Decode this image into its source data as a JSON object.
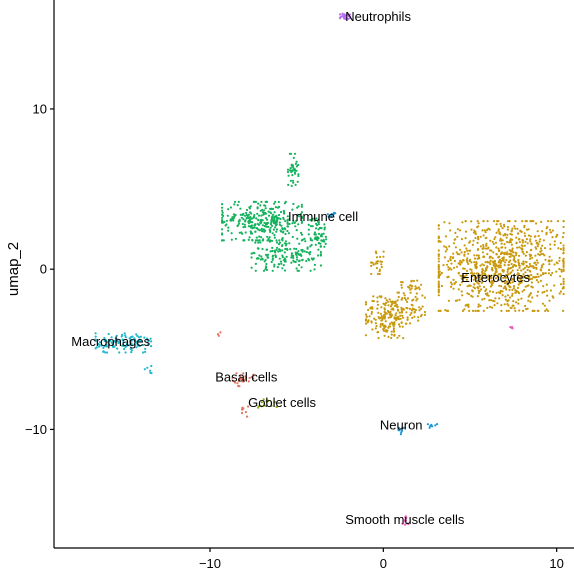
{
  "chart_data": {
    "type": "scatter",
    "xlabel": "",
    "ylabel": "umap_2",
    "xlim": [
      -19,
      11
    ],
    "ylim": [
      -17.4,
      16.8
    ],
    "x_ticks": [
      -10,
      0,
      10
    ],
    "x_tick_labels": [
      "−10",
      "0",
      "10"
    ],
    "y_ticks": [
      -10,
      0,
      10
    ],
    "y_tick_labels": [
      "−10",
      "0",
      "10"
    ],
    "grid": false,
    "legend": "none",
    "clusters": [
      {
        "name": "Enterocytes",
        "color": "#C99A0E",
        "label_at": [
          4.5,
          -0.8
        ],
        "blobs": [
          [
            6.8,
            0.2,
            3.6,
            2.8,
            900
          ],
          [
            0.2,
            -3.0,
            1.2,
            1.3,
            170
          ],
          [
            1.6,
            -2.0,
            0.9,
            1.4,
            90
          ],
          [
            -0.3,
            0.4,
            0.4,
            0.7,
            25
          ]
        ]
      },
      {
        "name": "Immune cell",
        "color": "#16B25E",
        "label_at": [
          -5.5,
          3.0
        ],
        "blobs": [
          [
            -7.0,
            3.0,
            2.3,
            1.2,
            330
          ],
          [
            -5.6,
            0.9,
            2.0,
            1.0,
            170
          ],
          [
            -5.2,
            6.2,
            0.3,
            1.0,
            40
          ],
          [
            -3.8,
            2.3,
            0.5,
            0.9,
            60
          ]
        ]
      },
      {
        "name": "Macrophages",
        "color": "#1FB8CC",
        "label_at": [
          -18,
          -4.8
        ],
        "blobs": [
          [
            -15.0,
            -4.6,
            1.6,
            0.6,
            120
          ],
          [
            -13.5,
            -6.2,
            0.4,
            0.4,
            6
          ]
        ]
      },
      {
        "name": "Basal cells",
        "color": "#E8735E",
        "label_at": [
          -9.7,
          -7.0
        ],
        "blobs": [
          [
            -8.1,
            -6.9,
            0.6,
            0.4,
            26
          ],
          [
            -8.0,
            -8.8,
            0.2,
            0.4,
            8
          ],
          [
            -9.5,
            -4.0,
            0.2,
            0.3,
            3
          ]
        ]
      },
      {
        "name": "Goblet cells",
        "color": "#8DAF1A",
        "label_at": [
          -7.8,
          -8.6
        ],
        "blobs": [
          [
            -6.7,
            -8.4,
            0.6,
            0.3,
            14
          ]
        ]
      },
      {
        "name": "Neutrophils",
        "color": "#B66DF0",
        "label_at": [
          -2.2,
          15.5
        ],
        "blobs": [
          [
            -2.2,
            15.8,
            0.3,
            0.3,
            22
          ]
        ]
      },
      {
        "name": "Neuron",
        "color": "#1C97D9",
        "label_at": [
          -0.2,
          -10.0
        ],
        "blobs": [
          [
            1.0,
            -10.1,
            0.3,
            0.2,
            10
          ],
          [
            2.8,
            -9.7,
            0.3,
            0.2,
            8
          ],
          [
            -2.9,
            3.4,
            0.3,
            0.15,
            10
          ]
        ]
      },
      {
        "name": "Smooth muscle cells",
        "color": "#EE5BB8",
        "label_at": [
          -2.2,
          -15.9
        ],
        "blobs": [
          [
            1.3,
            -15.7,
            0.2,
            0.3,
            10
          ],
          [
            7.4,
            -3.6,
            0.1,
            0.15,
            4
          ]
        ]
      }
    ]
  }
}
